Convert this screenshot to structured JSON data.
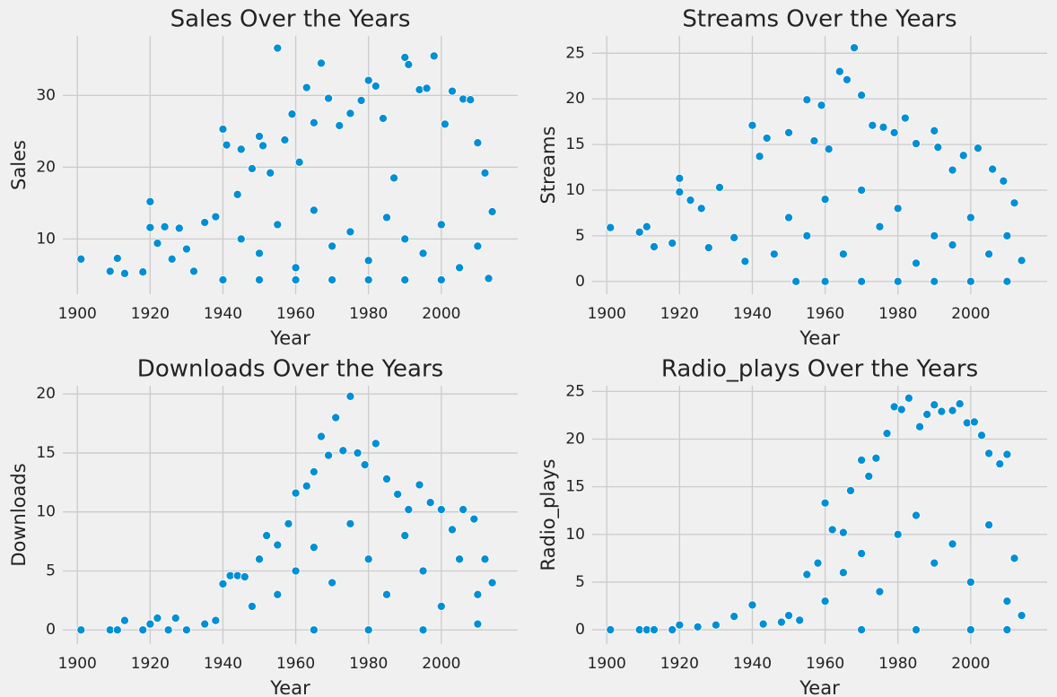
{
  "chart_data": [
    {
      "type": "scatter",
      "title": "Sales Over the Years",
      "xlabel": "Year",
      "ylabel": "Sales",
      "color": "#008fd5",
      "grid": true,
      "xlim": [
        1896,
        2021
      ],
      "ylim": [
        2.3,
        38.3
      ],
      "xticks": [
        1900,
        1920,
        1940,
        1960,
        1980,
        2000
      ],
      "yticks": [
        10,
        20,
        30
      ],
      "x": [
        1901,
        1909,
        1911,
        1913,
        1918,
        1920,
        1920,
        1922,
        1924,
        1926,
        1928,
        1930,
        1932,
        1935,
        1938,
        1940,
        1941,
        1944,
        1945,
        1948,
        1950,
        1951,
        1953,
        1955,
        1957,
        1959,
        1961,
        1963,
        1965,
        1967,
        1969,
        1972,
        1975,
        1978,
        1980,
        1982,
        1984,
        1987,
        1990,
        1991,
        1994,
        1996,
        1998,
        2001,
        2003,
        2006,
        2008,
        2010,
        2012,
        2014,
        1945,
        1950,
        1955,
        1960,
        1965,
        1970,
        1975,
        1980,
        1985,
        1990,
        1995,
        2000,
        2005,
        2010,
        1960,
        1970,
        1980,
        1990,
        2000,
        2013,
        1940,
        1950
      ],
      "y": [
        7.2,
        5.5,
        7.3,
        5.2,
        5.4,
        15.2,
        11.6,
        9.4,
        11.7,
        7.2,
        11.5,
        8.6,
        5.5,
        12.3,
        13.1,
        25.3,
        23.1,
        16.2,
        22.5,
        19.8,
        24.3,
        23.0,
        19.2,
        36.6,
        23.8,
        27.4,
        20.7,
        31.1,
        26.2,
        34.5,
        29.6,
        25.8,
        27.5,
        29.3,
        32.1,
        31.3,
        26.8,
        18.5,
        35.3,
        34.3,
        30.8,
        31.0,
        35.5,
        26.0,
        30.6,
        29.5,
        29.4,
        23.4,
        19.2,
        13.8,
        10,
        8,
        12,
        6,
        14,
        9,
        11,
        7,
        13,
        10,
        8,
        12,
        6,
        9,
        4.3,
        4.3,
        4.3,
        4.3,
        4.3,
        4.5,
        4.3,
        4.3
      ]
    },
    {
      "type": "scatter",
      "title": "Streams Over the Years",
      "xlabel": "Year",
      "ylabel": "Streams",
      "color": "#008fd5",
      "grid": true,
      "xlim": [
        1896,
        2021
      ],
      "ylim": [
        -1.4,
        26.9
      ],
      "xticks": [
        1900,
        1920,
        1940,
        1960,
        1980,
        2000
      ],
      "yticks": [
        0,
        5,
        10,
        15,
        20,
        25
      ],
      "x": [
        1901,
        1909,
        1911,
        1913,
        1918,
        1920,
        1920,
        1923,
        1926,
        1928,
        1931,
        1935,
        1938,
        1940,
        1942,
        1944,
        1946,
        1950,
        1952,
        1955,
        1957,
        1959,
        1961,
        1964,
        1966,
        1968,
        1970,
        1973,
        1976,
        1979,
        1982,
        1985,
        1990,
        1991,
        1995,
        1998,
        2002,
        2006,
        2009,
        2012,
        2014,
        1950,
        1955,
        1960,
        1965,
        1970,
        1975,
        1980,
        1985,
        1990,
        1995,
        2000,
        2005,
        2010,
        1960,
        1970,
        1980,
        1990,
        2000,
        2010
      ],
      "y": [
        5.9,
        5.4,
        6.0,
        3.8,
        4.2,
        11.3,
        9.8,
        8.9,
        8.0,
        3.7,
        10.3,
        4.8,
        2.2,
        17.1,
        13.7,
        15.7,
        3.0,
        16.3,
        0.0,
        19.9,
        15.4,
        19.3,
        14.5,
        23.0,
        22.1,
        25.6,
        20.4,
        17.1,
        16.9,
        16.3,
        17.9,
        15.1,
        16.5,
        14.7,
        12.2,
        13.8,
        14.6,
        12.3,
        11.0,
        8.6,
        2.3,
        7,
        5,
        9,
        3,
        10,
        6,
        8,
        2,
        5,
        4,
        7,
        3,
        5,
        0,
        0,
        0,
        0,
        0,
        0
      ]
    },
    {
      "type": "scatter",
      "title": "Downloads Over the Years",
      "xlabel": "Year",
      "ylabel": "Downloads",
      "color": "#008fd5",
      "grid": true,
      "xlim": [
        1896,
        2021
      ],
      "ylim": [
        -1.2,
        20.7
      ],
      "xticks": [
        1900,
        1920,
        1940,
        1960,
        1980,
        2000
      ],
      "yticks": [
        0,
        5,
        10,
        15,
        20
      ],
      "x": [
        1901,
        1909,
        1911,
        1913,
        1918,
        1920,
        1922,
        1925,
        1927,
        1930,
        1935,
        1938,
        1940,
        1942,
        1944,
        1946,
        1948,
        1950,
        1952,
        1955,
        1958,
        1960,
        1963,
        1965,
        1967,
        1969,
        1971,
        1973,
        1975,
        1977,
        1979,
        1982,
        1985,
        1988,
        1991,
        1994,
        1997,
        2000,
        2003,
        2006,
        2009,
        2012,
        2014,
        1955,
        1960,
        1965,
        1970,
        1975,
        1980,
        1985,
        1990,
        1995,
        2000,
        2005,
        2010,
        1965,
        1980,
        1995,
        2010
      ],
      "y": [
        0,
        0,
        0,
        0.8,
        0,
        0.5,
        1.0,
        0,
        1.0,
        0,
        0.5,
        0.8,
        3.9,
        4.6,
        4.6,
        4.5,
        2.0,
        6.0,
        8.0,
        7.2,
        9.0,
        11.6,
        12.2,
        13.4,
        16.4,
        14.8,
        18.0,
        15.2,
        19.8,
        15.0,
        14.0,
        15.8,
        12.8,
        11.5,
        10.2,
        12.3,
        10.8,
        10.2,
        8.5,
        10.2,
        9.4,
        6.0,
        4.0,
        3,
        5,
        7,
        4,
        9,
        6,
        3,
        8,
        5,
        2,
        6,
        3,
        0,
        0,
        0,
        0.5
      ]
    },
    {
      "type": "scatter",
      "title": "Radio_plays Over the Years",
      "xlabel": "Year",
      "ylabel": "Radio_plays",
      "color": "#008fd5",
      "grid": true,
      "xlim": [
        1896,
        2021
      ],
      "ylim": [
        -1.5,
        25.6
      ],
      "xticks": [
        1900,
        1920,
        1940,
        1960,
        1980,
        2000
      ],
      "yticks": [
        0,
        5,
        10,
        15,
        20,
        25
      ],
      "x": [
        1901,
        1909,
        1911,
        1913,
        1918,
        1920,
        1925,
        1930,
        1935,
        1940,
        1943,
        1948,
        1950,
        1953,
        1955,
        1958,
        1960,
        1962,
        1965,
        1967,
        1970,
        1972,
        1974,
        1977,
        1979,
        1981,
        1983,
        1986,
        1988,
        1990,
        1992,
        1995,
        1997,
        1999,
        2001,
        2003,
        2005,
        2008,
        2010,
        2012,
        2014,
        1960,
        1965,
        1970,
        1975,
        1980,
        1985,
        1990,
        1995,
        2000,
        2005,
        2010,
        1970,
        1985,
        2000,
        2010
      ],
      "y": [
        0,
        0,
        0,
        0,
        0,
        0.5,
        0.3,
        0.5,
        1.4,
        2.6,
        0.6,
        0.8,
        1.5,
        1.0,
        5.8,
        7.0,
        13.3,
        10.5,
        10.2,
        14.6,
        17.8,
        16.1,
        18.0,
        20.6,
        23.4,
        23.1,
        24.3,
        21.3,
        22.6,
        23.6,
        22.9,
        23.0,
        23.7,
        21.7,
        21.8,
        20.4,
        18.5,
        17.4,
        18.4,
        7.5,
        1.5,
        3,
        6,
        8,
        4,
        10,
        12,
        7,
        9,
        5,
        11,
        3,
        0,
        0,
        0,
        0
      ]
    }
  ]
}
